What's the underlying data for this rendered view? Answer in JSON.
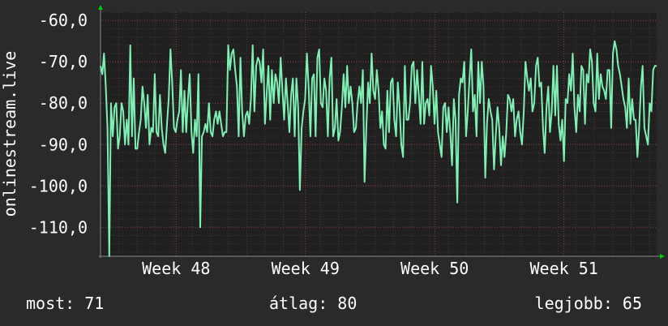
{
  "colors": {
    "background": "#2a2a2a",
    "plot_background": "#202020",
    "grid": "#4a3333",
    "line": "#7ff0b4",
    "axis_arrow": "#00cc00",
    "text": "#ffffff"
  },
  "chart_data": {
    "type": "line",
    "ylabel": "onlinestream.live",
    "ylim": [
      -117,
      -58
    ],
    "yticks": [
      "-60,0",
      "-70,0",
      "-80,0",
      "-90,0",
      "-100,0",
      "-110,0"
    ],
    "ytick_values": [
      -60,
      -70,
      -80,
      -90,
      -100,
      -110
    ],
    "xlim": [
      0,
      228
    ],
    "xticks": [
      "Week 48",
      "Week 49",
      "Week 50",
      "Week 51"
    ],
    "xtick_values": [
      31,
      84,
      137,
      190
    ],
    "grid": true,
    "series": [
      {
        "values": [
          -71,
          -73,
          -68,
          -76,
          -86,
          -117,
          -80,
          -88,
          -81,
          -80,
          -91,
          -88,
          -80,
          -82,
          -90,
          -84,
          -90,
          -66,
          -88,
          -74,
          -91,
          -91,
          -87,
          -84,
          -76,
          -80,
          -86,
          -78,
          -90,
          -86,
          -87,
          -73,
          -87,
          -88,
          -78,
          -86,
          -90,
          -92,
          -85,
          -79,
          -67,
          -75,
          -86,
          -87,
          -84,
          -82,
          -72,
          -87,
          -77,
          -87,
          -79,
          -73,
          -87,
          -92,
          -84,
          -88,
          -73,
          -110,
          -88,
          -87,
          -85,
          -87,
          -80,
          -87,
          -88,
          -84,
          -82,
          -85,
          -82,
          -85,
          -88,
          -87,
          -87,
          -66,
          -72,
          -68,
          -67,
          -72,
          -76,
          -88,
          -69,
          -82,
          -88,
          -83,
          -82,
          -85,
          -79,
          -66,
          -82,
          -71,
          -69,
          -70,
          -75,
          -67,
          -85,
          -78,
          -71,
          -84,
          -72,
          -80,
          -73,
          -75,
          -80,
          -69,
          -77,
          -84,
          -74,
          -80,
          -87,
          -78,
          -74,
          -88,
          -74,
          -81,
          -101,
          -86,
          -82,
          -79,
          -68,
          -76,
          -88,
          -74,
          -73,
          -88,
          -69,
          -67,
          -80,
          -81,
          -74,
          -77,
          -88,
          -74,
          -69,
          -88,
          -86,
          -79,
          -89,
          -87,
          -81,
          -73,
          -81,
          -71,
          -80,
          -76,
          -80,
          -87,
          -86,
          -80,
          -76,
          -80,
          -72,
          -99,
          -86,
          -75,
          -80,
          -68,
          -77,
          -79,
          -72,
          -77,
          -86,
          -82,
          -90,
          -91,
          -77,
          -87,
          -75,
          -74,
          -84,
          -88,
          -75,
          -81,
          -90,
          -93,
          -71,
          -84,
          -84,
          -80,
          -71,
          -70,
          -80,
          -72,
          -78,
          -85,
          -70,
          -85,
          -80,
          -79,
          -83,
          -71,
          -76,
          -85,
          -77,
          -87,
          -90,
          -93,
          -81,
          -80,
          -87,
          -81,
          -87,
          -95,
          -79,
          -84,
          -104,
          -78,
          -74,
          -75,
          -70,
          -88,
          -82,
          -74,
          -67,
          -82,
          -78,
          -88,
          -70,
          -80,
          -70,
          -76,
          -98,
          -85,
          -79,
          -82,
          -84,
          -96,
          -88,
          -81,
          -86,
          -95,
          -88,
          -93,
          -87,
          -78,
          -79,
          -82,
          -79,
          -88,
          -84,
          -82,
          -87,
          -90,
          -82,
          -70,
          -74,
          -77,
          -74,
          -82,
          -80,
          -71,
          -69,
          -76,
          -75,
          -86,
          -92,
          -81,
          -76,
          -87,
          -82,
          -71,
          -83,
          -71,
          -85,
          -89,
          -84,
          -94,
          -79,
          -80,
          -73,
          -77,
          -68,
          -81,
          -87,
          -78,
          -82,
          -71,
          -72,
          -85,
          -73,
          -75,
          -67,
          -70,
          -80,
          -82,
          -68,
          -79,
          -73,
          -76,
          -77,
          -79,
          -72,
          -72,
          -86,
          -68,
          -65,
          -67,
          -71,
          -73,
          -76,
          -79,
          -81,
          -86,
          -74,
          -85,
          -79,
          -84,
          -84,
          -93,
          -86,
          -76,
          -71,
          -86,
          -88,
          -90,
          -80,
          -82,
          -72,
          -71,
          -71
        ]
      }
    ]
  },
  "stats": {
    "now": "most: 71",
    "average": "átlag: 80",
    "best": "legjobb: 65"
  }
}
